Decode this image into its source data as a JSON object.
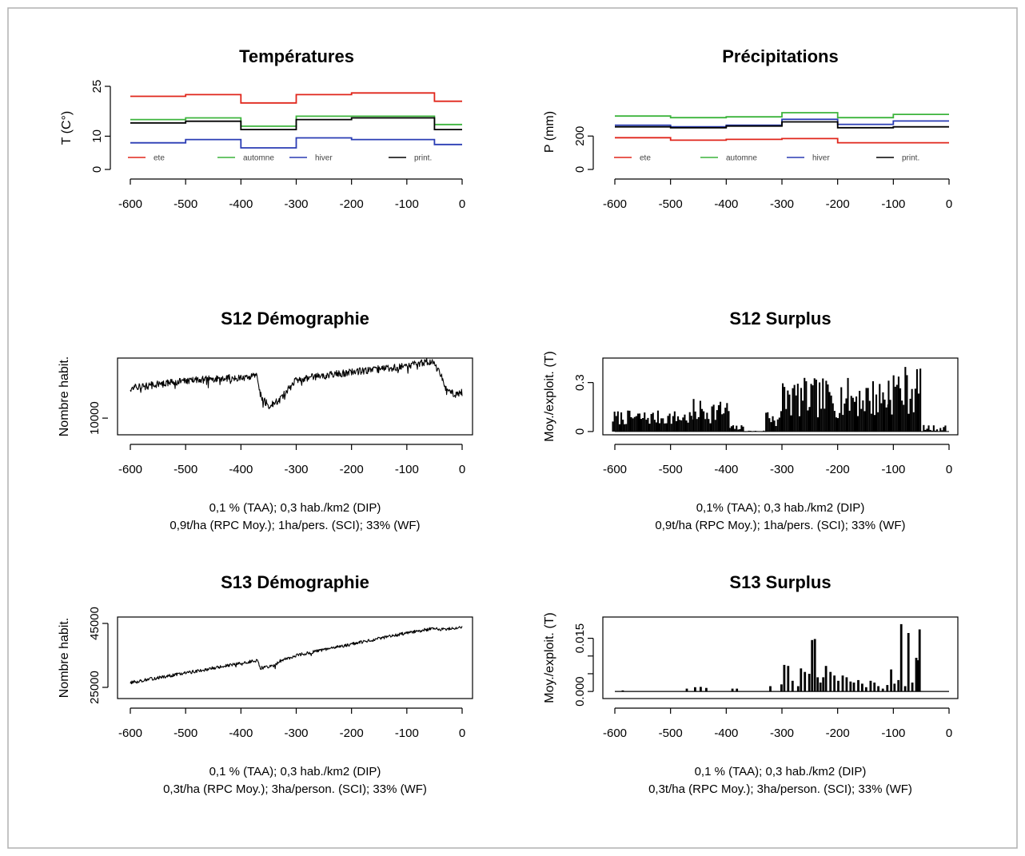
{
  "chart_data": [
    {
      "id": "temp",
      "type": "line",
      "title": "Températures",
      "xlabel": "",
      "ylabel": "T (C°)",
      "xlim": [
        -600,
        0
      ],
      "ylim": [
        0,
        25
      ],
      "xticks": [
        -600,
        -500,
        -400,
        -300,
        -200,
        -100,
        0
      ],
      "yticks": [
        0,
        10,
        25
      ],
      "legend_position": "bottom",
      "step": true,
      "breaks": [
        -600,
        -500,
        -400,
        -300,
        -200,
        -50,
        0
      ],
      "series": [
        {
          "name": "ete",
          "color": "#e0261b",
          "values": [
            22,
            22.5,
            20,
            22.5,
            23,
            20.5
          ]
        },
        {
          "name": "automne",
          "color": "#3cb43c",
          "values": [
            15,
            15.5,
            13,
            16,
            16,
            13.5
          ]
        },
        {
          "name": "hiver",
          "color": "#2a3cb4",
          "values": [
            8,
            9,
            6.5,
            9.5,
            9,
            7.5
          ]
        },
        {
          "name": "print.",
          "color": "#000000",
          "values": [
            14,
            14.5,
            12,
            15,
            15.5,
            12
          ]
        }
      ],
      "caption": []
    },
    {
      "id": "prec",
      "type": "line",
      "title": "Précipitations",
      "xlabel": "",
      "ylabel": "P (mm)",
      "xlim": [
        -600,
        0
      ],
      "ylim": [
        0,
        450
      ],
      "xticks": [
        -600,
        -500,
        -400,
        -300,
        -200,
        -100,
        0
      ],
      "yticks": [
        0,
        200
      ],
      "legend_position": "bottom",
      "step": true,
      "breaks": [
        -600,
        -500,
        -400,
        -300,
        -200,
        -100,
        0
      ],
      "series": [
        {
          "name": "ete",
          "color": "#e0261b",
          "values": [
            190,
            175,
            180,
            185,
            160,
            160
          ]
        },
        {
          "name": "automne",
          "color": "#3cb43c",
          "values": [
            320,
            310,
            315,
            340,
            310,
            330
          ]
        },
        {
          "name": "hiver",
          "color": "#2a3cb4",
          "values": [
            265,
            255,
            265,
            300,
            270,
            290
          ]
        },
        {
          "name": "print.",
          "color": "#000000",
          "values": [
            255,
            250,
            260,
            285,
            250,
            255
          ]
        }
      ],
      "caption": []
    },
    {
      "id": "s12d",
      "type": "line",
      "title": "S12 Démographie",
      "xlabel": "",
      "ylabel": "Nombre habit.",
      "xlim": [
        -600,
        0
      ],
      "ylim": [
        7500,
        19000
      ],
      "xticks": [
        -600,
        -500,
        -400,
        -300,
        -200,
        -100,
        0
      ],
      "yticks": [
        10000
      ],
      "noise": 550,
      "seed": 12,
      "points": [
        [
          -600,
          14500
        ],
        [
          -500,
          15600
        ],
        [
          -400,
          16100
        ],
        [
          -370,
          16300
        ],
        [
          -365,
          13500
        ],
        [
          -350,
          11800
        ],
        [
          -330,
          12800
        ],
        [
          -315,
          14200
        ],
        [
          -300,
          15800
        ],
        [
          -200,
          16900
        ],
        [
          -100,
          17800
        ],
        [
          -55,
          18600
        ],
        [
          -40,
          16800
        ],
        [
          -30,
          14500
        ],
        [
          -15,
          13500
        ],
        [
          0,
          13800
        ]
      ],
      "caption": [
        "0,1 % (TAA); 0,3 hab./km2 (DIP)",
        "0,9t/ha (RPC Moy.); 1ha/pers. (SCI); 33% (WF)"
      ]
    },
    {
      "id": "s12s",
      "type": "bar",
      "title": "S12 Surplus",
      "xlabel": "",
      "ylabel": "Moy./exploit. (T)",
      "xlim": [
        -600,
        0
      ],
      "ylim": [
        -0.02,
        0.45
      ],
      "xticks": [
        -600,
        -500,
        -400,
        -300,
        -200,
        -100,
        0
      ],
      "yticks": [
        0.0,
        0.3
      ],
      "seed": 7,
      "bar_width": 3,
      "segments": [
        [
          -605,
          -460,
          0.04,
          0.13
        ],
        [
          -460,
          -395,
          0.05,
          0.2
        ],
        [
          -395,
          -370,
          0.005,
          0.04
        ],
        [
          -370,
          -330,
          0.0,
          0.006
        ],
        [
          -330,
          -300,
          0.02,
          0.16
        ],
        [
          -300,
          -110,
          0.08,
          0.33
        ],
        [
          -110,
          -50,
          0.1,
          0.41
        ],
        [
          -50,
          -5,
          0.0,
          0.04
        ]
      ],
      "caption": [
        "0,1% (TAA); 0,3 hab./km2 (DIP)",
        "0,9t/ha (RPC Moy.); 1ha/pers. (SCI); 33% (WF)"
      ]
    },
    {
      "id": "s13d",
      "type": "line",
      "title": "S13 Démographie",
      "xlabel": "",
      "ylabel": "Nombre habit.",
      "xlim": [
        -600,
        0
      ],
      "ylim": [
        21500,
        47000
      ],
      "xticks": [
        -600,
        -500,
        -400,
        -300,
        -200,
        -100,
        0
      ],
      "yticks": [
        25000,
        45000
      ],
      "noise": 500,
      "seed": 13,
      "points": [
        [
          -600,
          26500
        ],
        [
          -500,
          29500
        ],
        [
          -400,
          32500
        ],
        [
          -370,
          33500
        ],
        [
          -365,
          31000
        ],
        [
          -340,
          31800
        ],
        [
          -330,
          33200
        ],
        [
          -300,
          35000
        ],
        [
          -200,
          38500
        ],
        [
          -100,
          42000
        ],
        [
          -50,
          43500
        ],
        [
          -40,
          43000
        ],
        [
          0,
          44000
        ]
      ],
      "caption": [
        "0,1 % (TAA); 0,3 hab./km2 (DIP)",
        "0,3t/ha (RPC Moy.); 3ha/person. (SCI);  33% (WF)"
      ]
    },
    {
      "id": "s13s",
      "type": "bar",
      "title": "S13 Surplus",
      "xlabel": "",
      "ylabel": "Moy./exploit. (T)",
      "xlim": [
        -600,
        0
      ],
      "ylim": [
        -0.002,
        0.021
      ],
      "xticks": [
        -600,
        -500,
        -400,
        -300,
        -200,
        -100,
        0
      ],
      "yticks": [
        0.0,
        0.005,
        0.01,
        0.015
      ],
      "ytick_labels": [
        "0.000",
        "",
        "",
        "0.015"
      ],
      "bar_width": 4,
      "bars": [
        [
          -585,
          0.0003
        ],
        [
          -470,
          0.0008
        ],
        [
          -455,
          0.0012
        ],
        [
          -445,
          0.0013
        ],
        [
          -435,
          0.001
        ],
        [
          -388,
          0.0008
        ],
        [
          -380,
          0.0008
        ],
        [
          -320,
          0.0015
        ],
        [
          -300,
          0.002
        ],
        [
          -295,
          0.0075
        ],
        [
          -288,
          0.0072
        ],
        [
          -280,
          0.003
        ],
        [
          -270,
          0.0015
        ],
        [
          -265,
          0.0065
        ],
        [
          -258,
          0.0055
        ],
        [
          -250,
          0.005
        ],
        [
          -245,
          0.0145
        ],
        [
          -240,
          0.0148
        ],
        [
          -235,
          0.004
        ],
        [
          -230,
          0.0025
        ],
        [
          -225,
          0.004
        ],
        [
          -220,
          0.0072
        ],
        [
          -212,
          0.0055
        ],
        [
          -205,
          0.0045
        ],
        [
          -198,
          0.003
        ],
        [
          -190,
          0.0045
        ],
        [
          -183,
          0.004
        ],
        [
          -176,
          0.0028
        ],
        [
          -170,
          0.0025
        ],
        [
          -162,
          0.0032
        ],
        [
          -155,
          0.0022
        ],
        [
          -148,
          0.0012
        ],
        [
          -140,
          0.003
        ],
        [
          -133,
          0.0025
        ],
        [
          -126,
          0.0015
        ],
        [
          -118,
          0.0008
        ],
        [
          -110,
          0.0018
        ],
        [
          -103,
          0.0062
        ],
        [
          -97,
          0.0022
        ],
        [
          -90,
          0.0032
        ],
        [
          -85,
          0.019
        ],
        [
          -78,
          0.0015
        ],
        [
          -72,
          0.0165
        ],
        [
          -65,
          0.0025
        ],
        [
          -58,
          0.0095
        ],
        [
          -55,
          0.0088
        ],
        [
          -52,
          0.0175
        ]
      ],
      "caption": [
        "0,1 % (TAA); 0,3 hab./km2 (DIP)",
        "0,3t/ha (RPC Moy.); 3ha/person. (SCI);  33% (WF)"
      ]
    }
  ]
}
